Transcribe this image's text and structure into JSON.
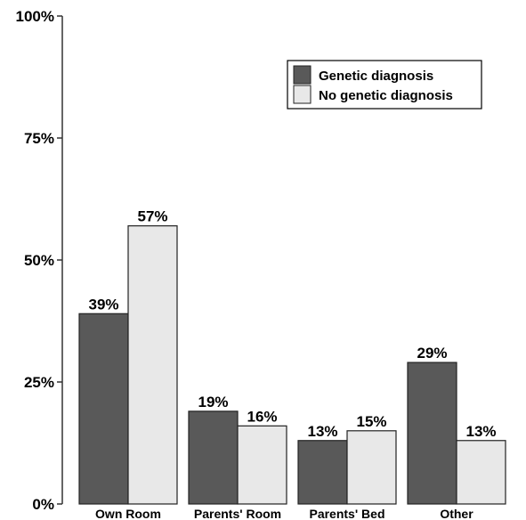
{
  "chart_data": {
    "type": "bar",
    "categories": [
      "Own Room",
      "Parents' Room",
      "Parents' Bed",
      "Other"
    ],
    "series": [
      {
        "name": "Genetic diagnosis",
        "values": [
          39,
          19,
          13,
          29
        ],
        "labels": [
          "39%",
          "19%",
          "13%",
          "29%"
        ],
        "color": "#595959"
      },
      {
        "name": "No genetic diagnosis",
        "values": [
          57,
          16,
          15,
          13
        ],
        "labels": [
          "57%",
          "16%",
          "15%",
          "13%"
        ],
        "color": "#e8e8e8"
      }
    ],
    "yticks": [
      0,
      25,
      50,
      75,
      100
    ],
    "ytick_labels": [
      "0%",
      "25%",
      "50%",
      "75%",
      "100%"
    ],
    "ylim": [
      0,
      100
    ],
    "grid": false,
    "legend_position": "top-right",
    "bar_outline": "#222222"
  }
}
